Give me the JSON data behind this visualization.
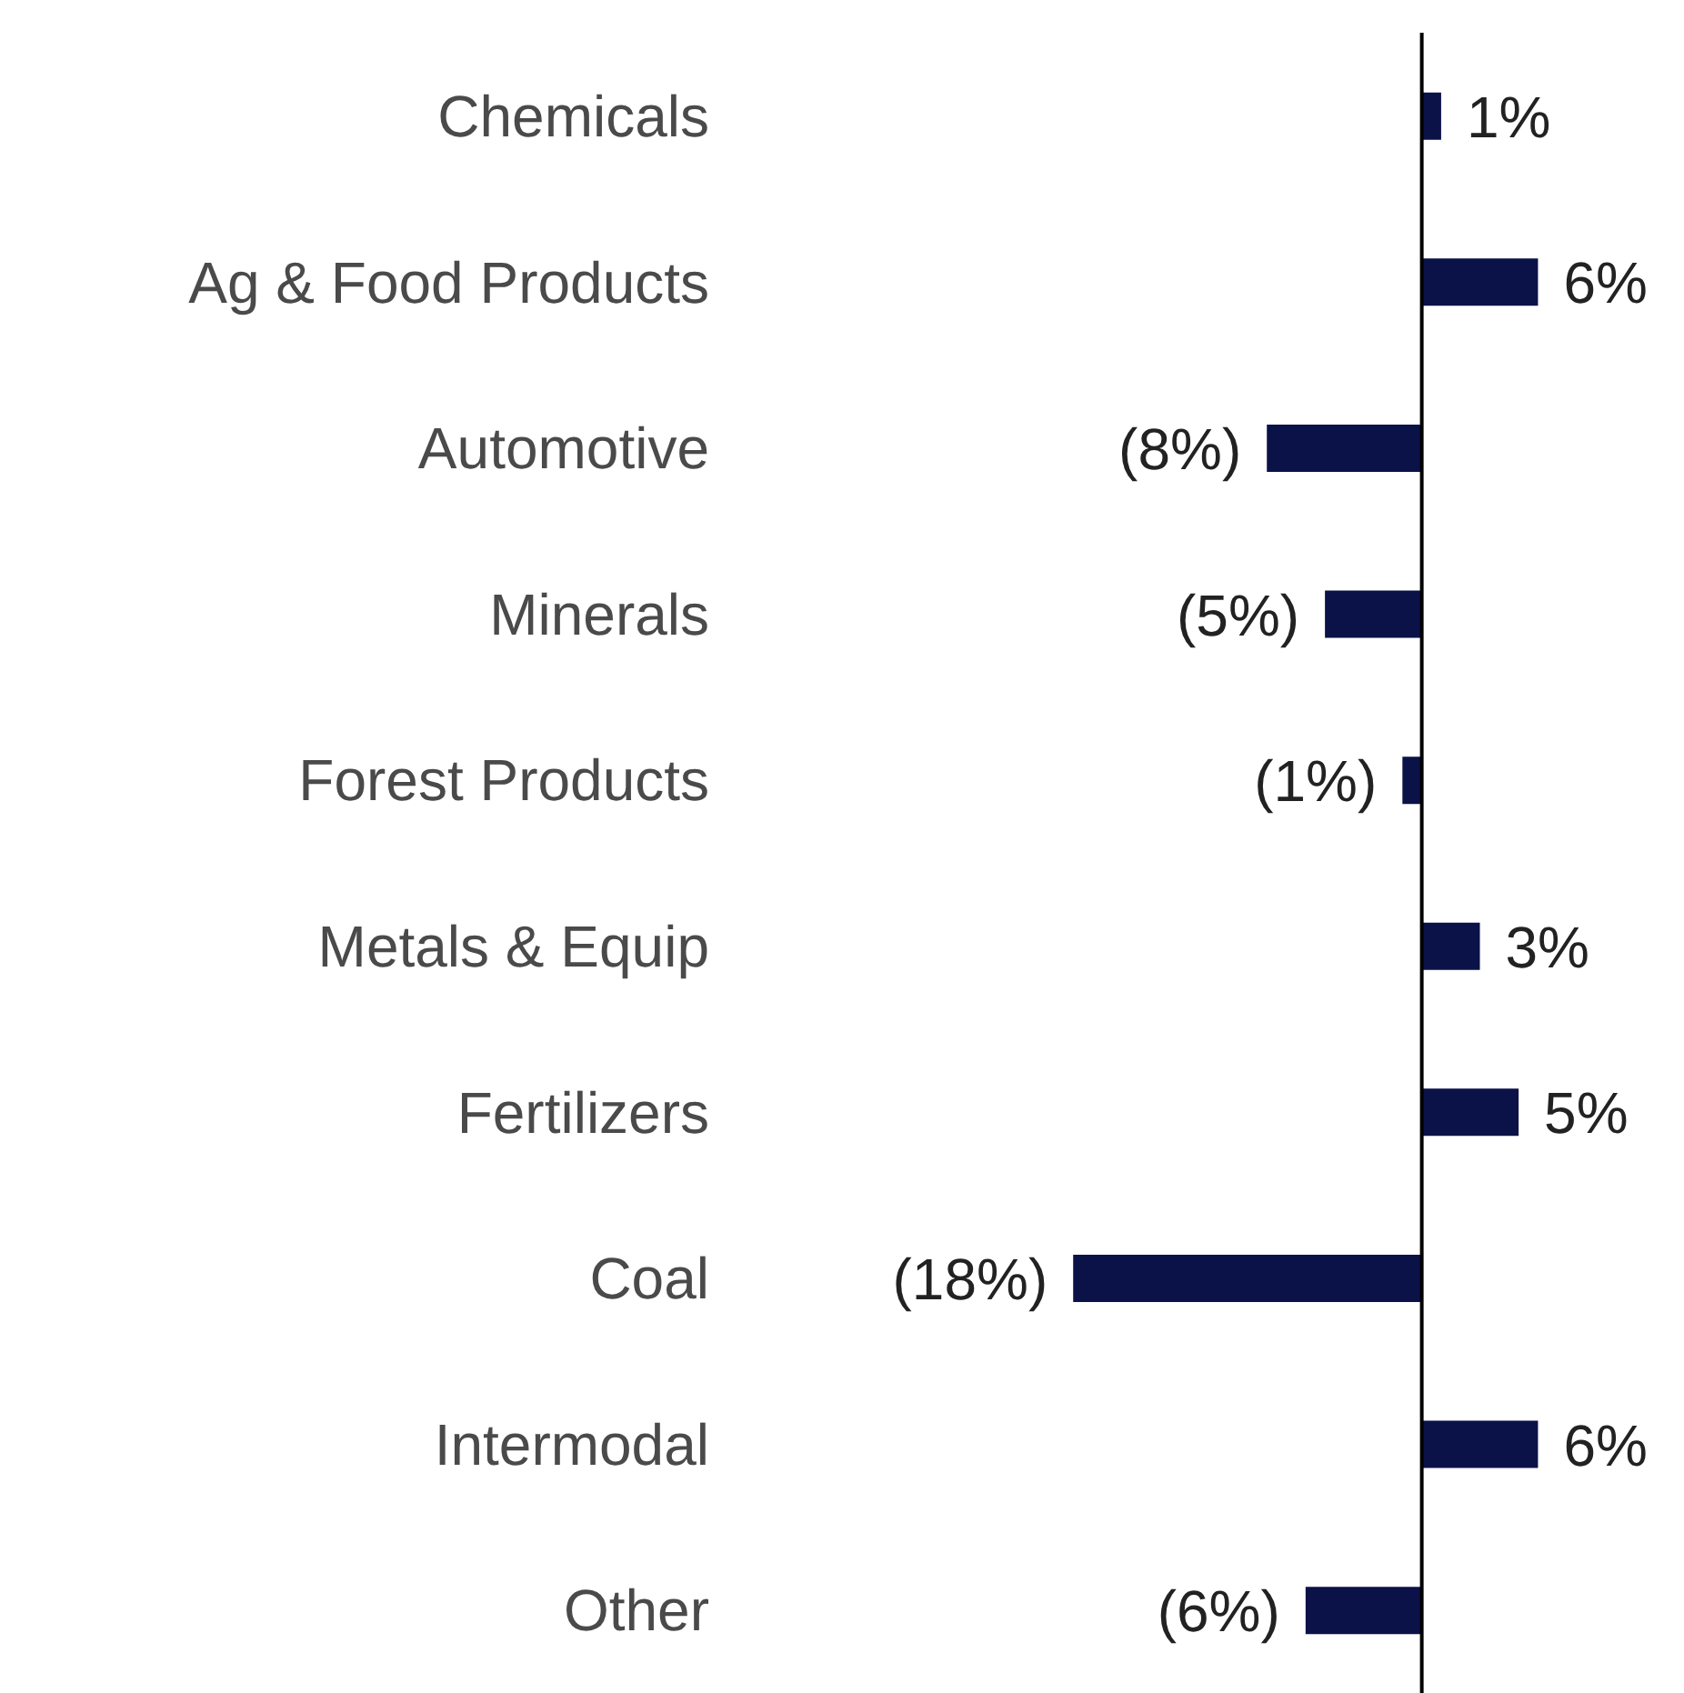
{
  "chart_data": {
    "type": "bar",
    "orientation": "horizontal",
    "categories": [
      "Chemicals",
      "Ag & Food Products",
      "Automotive",
      "Minerals",
      "Forest Products",
      "Metals & Equip",
      "Fertilizers",
      "Coal",
      "Intermodal",
      "Other"
    ],
    "values": [
      1,
      6,
      -8,
      -5,
      -1,
      3,
      5,
      -18,
      6,
      -6
    ],
    "value_labels": [
      "1%",
      "6%",
      "(8%)",
      "(5%)",
      "(1%)",
      "3%",
      "5%",
      "(18%)",
      "6%",
      "(6%)"
    ],
    "color": "#0b1247",
    "grid": false,
    "legend": false
  }
}
